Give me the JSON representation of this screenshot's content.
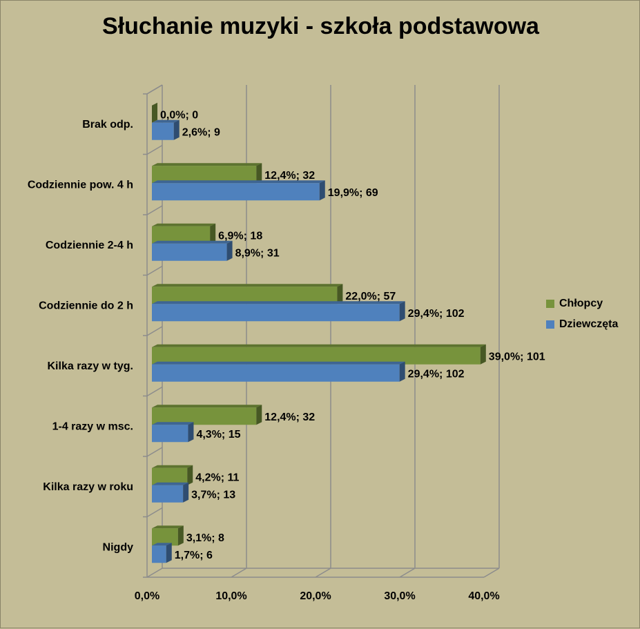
{
  "chart_data": {
    "type": "bar",
    "orientation": "horizontal",
    "title": "Słuchanie muzyki - szkoła podstawowa",
    "categories": [
      "Brak odp.",
      "Codziennie pow. 4 h",
      "Codziennie 2-4 h",
      "Codziennie do 2 h",
      "Kilka razy w tyg.",
      "1-4 razy w msc.",
      "Kilka razy w roku",
      "Nigdy"
    ],
    "series": [
      {
        "name": "Chłopcy",
        "color": "#77933c",
        "values": [
          0.0,
          12.4,
          6.9,
          22.0,
          39.0,
          12.4,
          4.2,
          3.1
        ],
        "labels": [
          "0,0%; 0",
          "12,4%; 32",
          "6,9%; 18",
          "22,0%; 57",
          "39,0%; 101",
          "12,4%; 32",
          "4,2%; 11",
          "3,1%; 8"
        ]
      },
      {
        "name": "Dziewczęta",
        "color": "#4f81bd",
        "values": [
          2.6,
          19.9,
          8.9,
          29.4,
          29.4,
          4.3,
          3.7,
          1.7
        ],
        "labels": [
          "2,6%; 9",
          "19,9%; 69",
          "8,9%; 31",
          "29,4%; 102",
          "29,4%; 102",
          "4,3%; 15",
          "3,7%; 13",
          "1,7%; 6"
        ]
      }
    ],
    "xlim": [
      0,
      40
    ],
    "xticks": [
      "0,0%",
      "10,0%",
      "20,0%",
      "30,0%",
      "40,0%"
    ],
    "grid": true,
    "legend_position": "right"
  }
}
